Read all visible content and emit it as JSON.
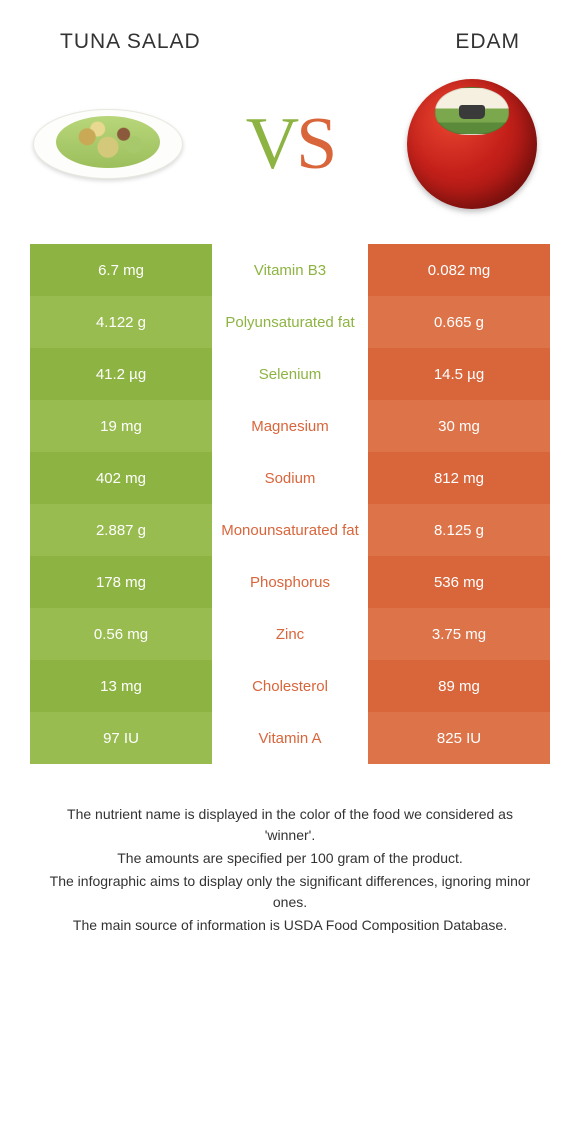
{
  "food_left": {
    "title": "TUNA SALAD"
  },
  "food_right": {
    "title": "EDAM"
  },
  "vs": {
    "v": "V",
    "s": "S"
  },
  "colors": {
    "left_a": "#8db442",
    "left_b": "#98bc50",
    "right_a": "#d9653b",
    "right_b": "#dd7349",
    "mid_left": "#8db442",
    "mid_right": "#d9653b"
  },
  "rows": [
    {
      "left": "6.7 mg",
      "mid": "Vitamin B3",
      "right": "0.082 mg",
      "winner": "left"
    },
    {
      "left": "4.122 g",
      "mid": "Polyunsaturated fat",
      "right": "0.665 g",
      "winner": "left"
    },
    {
      "left": "41.2 µg",
      "mid": "Selenium",
      "right": "14.5 µg",
      "winner": "left"
    },
    {
      "left": "19 mg",
      "mid": "Magnesium",
      "right": "30 mg",
      "winner": "right"
    },
    {
      "left": "402 mg",
      "mid": "Sodium",
      "right": "812 mg",
      "winner": "right"
    },
    {
      "left": "2.887 g",
      "mid": "Monounsaturated fat",
      "right": "8.125 g",
      "winner": "right"
    },
    {
      "left": "178 mg",
      "mid": "Phosphorus",
      "right": "536 mg",
      "winner": "right"
    },
    {
      "left": "0.56 mg",
      "mid": "Zinc",
      "right": "3.75 mg",
      "winner": "right"
    },
    {
      "left": "13 mg",
      "mid": "Cholesterol",
      "right": "89 mg",
      "winner": "right"
    },
    {
      "left": "97 IU",
      "mid": "Vitamin A",
      "right": "825 IU",
      "winner": "right"
    }
  ],
  "footnotes": [
    "The nutrient name is displayed in the color of the food we considered as 'winner'.",
    "The amounts are specified per 100 gram of the product.",
    "The infographic aims to display only the significant differences, ignoring minor ones.",
    "The main source of information is USDA Food Composition Database."
  ]
}
